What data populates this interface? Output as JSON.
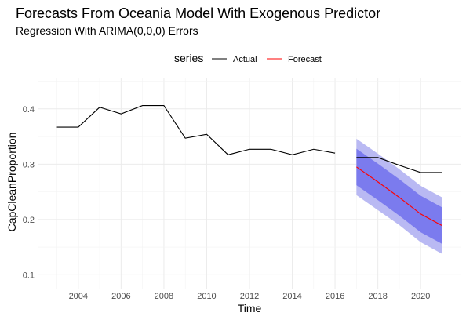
{
  "chart_data": {
    "type": "line",
    "title": "Forecasts From Oceania Model With Exogenous Predictor",
    "subtitle": "Regression With ARIMA(0,0,0) Errors",
    "xlabel": "Time",
    "ylabel": "CapCleanProportion",
    "legend": {
      "title": "series",
      "position": "top",
      "entries": [
        {
          "label": "Actual",
          "color": "#000000"
        },
        {
          "label": "Forecast",
          "color": "#ff0000"
        }
      ]
    },
    "xlim": [
      2002.1,
      2021.9
    ],
    "ylim": [
      0.075,
      0.455
    ],
    "x_ticks": [
      2004,
      2006,
      2008,
      2010,
      2012,
      2014,
      2016,
      2018,
      2020
    ],
    "x_tick_labels": [
      "2004",
      "2006",
      "2008",
      "2010",
      "2012",
      "2014",
      "2016",
      "2018",
      "2020"
    ],
    "y_ticks": [
      0.1,
      0.2,
      0.3,
      0.4
    ],
    "y_tick_labels": [
      "0.1",
      "0.2",
      "0.3",
      "0.4"
    ],
    "grid": true,
    "series": [
      {
        "name": "Actual",
        "color": "#000000",
        "x": [
          2003,
          2004,
          2005,
          2006,
          2007,
          2008,
          2009,
          2010,
          2011,
          2012,
          2013,
          2014,
          2015,
          2016,
          null,
          2017,
          2018,
          2019,
          2020,
          2021
        ],
        "y": [
          0.367,
          0.367,
          0.403,
          0.391,
          0.406,
          0.406,
          0.347,
          0.354,
          0.317,
          0.327,
          0.327,
          0.317,
          0.327,
          0.32,
          null,
          0.312,
          0.312,
          0.298,
          0.285,
          0.285
        ]
      },
      {
        "name": "Forecast",
        "color": "#ff0000",
        "x": [
          2017,
          2018,
          2019,
          2020,
          2021
        ],
        "y": [
          0.295,
          0.268,
          0.24,
          0.21,
          0.189
        ]
      }
    ],
    "intervals": [
      {
        "level": "95",
        "color": "#b9b9f3",
        "x": [
          2017,
          2018,
          2019,
          2020,
          2021
        ],
        "lower": [
          0.244,
          0.217,
          0.19,
          0.159,
          0.138
        ],
        "upper": [
          0.346,
          0.319,
          0.291,
          0.261,
          0.24
        ]
      },
      {
        "level": "80",
        "color": "#7b7bee",
        "x": [
          2017,
          2018,
          2019,
          2020,
          2021
        ],
        "lower": [
          0.262,
          0.235,
          0.207,
          0.177,
          0.156
        ],
        "upper": [
          0.328,
          0.301,
          0.273,
          0.243,
          0.222
        ]
      }
    ]
  }
}
